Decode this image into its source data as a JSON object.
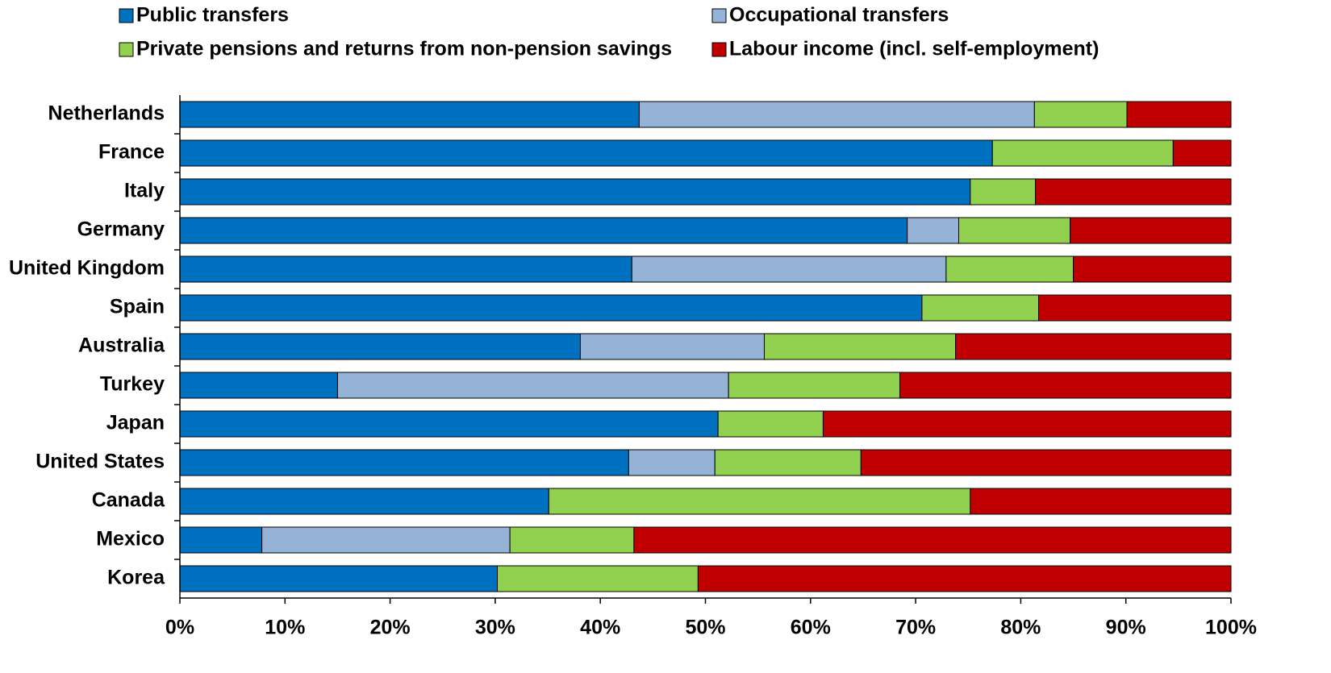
{
  "chart_data": {
    "type": "stacked-bar-horizontal",
    "categories": [
      "Netherlands",
      "France",
      "Italy",
      "Germany",
      "United Kingdom",
      "Spain",
      "Australia",
      "Turkey",
      "Japan",
      "United States",
      "Canada",
      "Mexico",
      "Korea"
    ],
    "series": [
      {
        "name": "Public transfers",
        "color": "#0070c0",
        "values": [
          43.7,
          77.3,
          75.2,
          69.2,
          43.0,
          70.6,
          38.1,
          15.0,
          51.2,
          42.7,
          35.1,
          7.8,
          30.2
        ]
      },
      {
        "name": "Occupational transfers",
        "color": "#95b3d7",
        "values": [
          37.6,
          0,
          0,
          4.9,
          29.9,
          0,
          17.5,
          37.2,
          0,
          8.2,
          0,
          23.6,
          0
        ]
      },
      {
        "name": "Private pensions and returns from non-pension savings",
        "color": "#92d050",
        "values": [
          8.8,
          17.2,
          6.2,
          10.6,
          12.1,
          11.1,
          18.2,
          16.3,
          10.0,
          13.9,
          40.1,
          11.8,
          19.1
        ]
      },
      {
        "name": "Labour income (incl. self-employment)",
        "color": "#c00000",
        "values": [
          9.9,
          5.5,
          18.6,
          15.3,
          15.0,
          18.3,
          26.2,
          31.5,
          38.8,
          35.2,
          24.8,
          56.8,
          50.7
        ]
      }
    ],
    "xlim": [
      0,
      100
    ],
    "xticks": [
      {
        "value": 0,
        "label": "0%"
      },
      {
        "value": 10,
        "label": "10%"
      },
      {
        "value": 20,
        "label": "20%"
      },
      {
        "value": 30,
        "label": "30%"
      },
      {
        "value": 40,
        "label": "40%"
      },
      {
        "value": 50,
        "label": "50%"
      },
      {
        "value": 60,
        "label": "60%"
      },
      {
        "value": 70,
        "label": "70%"
      },
      {
        "value": 80,
        "label": "80%"
      },
      {
        "value": 90,
        "label": "90%"
      },
      {
        "value": 100,
        "label": "100%"
      }
    ],
    "legend": "top"
  }
}
